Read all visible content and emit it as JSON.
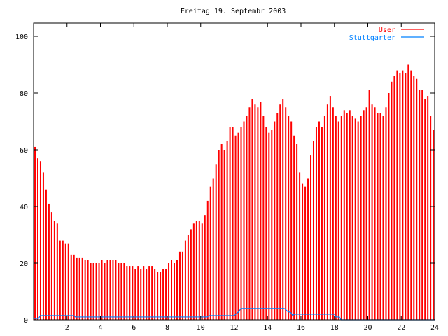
{
  "chart_data": {
    "type": "bar",
    "title": "Freitag 19. Septembr 2003",
    "xlabel": "",
    "ylabel": "",
    "xlim": [
      0,
      24
    ],
    "ylim": [
      0,
      105
    ],
    "xticks": [
      2,
      4,
      6,
      8,
      10,
      12,
      14,
      16,
      18,
      20,
      22,
      24
    ],
    "yticks": [
      0,
      20,
      40,
      60,
      80,
      100
    ],
    "legend_position": "top-right",
    "grid": false,
    "series": [
      {
        "name": "User",
        "color": "#ff0000",
        "style": "impulses",
        "interval_hours": 0.1667,
        "values": [
          61,
          57,
          56,
          52,
          46,
          41,
          38,
          35,
          34,
          28,
          28,
          27,
          27,
          23,
          23,
          22,
          22,
          22,
          21,
          21,
          20,
          20,
          20,
          20,
          21,
          20,
          21,
          21,
          21,
          21,
          20,
          20,
          20,
          19,
          19,
          19,
          18,
          19,
          18,
          19,
          18,
          19,
          19,
          18,
          17,
          17,
          18,
          18,
          20,
          21,
          20,
          21,
          24,
          24,
          28,
          30,
          32,
          34,
          35,
          35,
          34,
          37,
          42,
          47,
          50,
          55,
          60,
          62,
          60,
          63,
          68,
          68,
          65,
          66,
          68,
          70,
          72,
          75,
          78,
          76,
          75,
          77,
          72,
          68,
          66,
          67,
          70,
          73,
          76,
          78,
          75,
          72,
          70,
          65,
          62,
          52,
          48,
          47,
          50,
          58,
          63,
          68,
          70,
          68,
          72,
          76,
          79,
          75,
          72,
          70,
          72,
          74,
          73,
          74,
          72,
          71,
          70,
          72,
          74,
          75,
          81,
          76,
          75,
          73,
          73,
          72,
          75,
          80,
          84,
          86,
          88,
          87,
          88,
          87,
          90,
          88,
          86,
          85,
          81,
          81,
          78,
          79,
          72,
          67
        ]
      },
      {
        "name": "Stuttgarter",
        "color": "#0080ff",
        "style": "lines",
        "x": [
          0,
          0.3,
          0.4,
          2.4,
          2.5,
          10.4,
          10.5,
          12.0,
          12.3,
          12.4,
          15.0,
          15.2,
          15.4,
          15.5,
          15.6,
          18.0,
          18.1,
          18.3,
          18.4,
          24
        ],
        "y": [
          0.5,
          0.5,
          1.5,
          1.5,
          1,
          1,
          1.5,
          1.5,
          3,
          4,
          4,
          3,
          2.5,
          1.5,
          2,
          2,
          1,
          1,
          0,
          0
        ]
      }
    ]
  }
}
